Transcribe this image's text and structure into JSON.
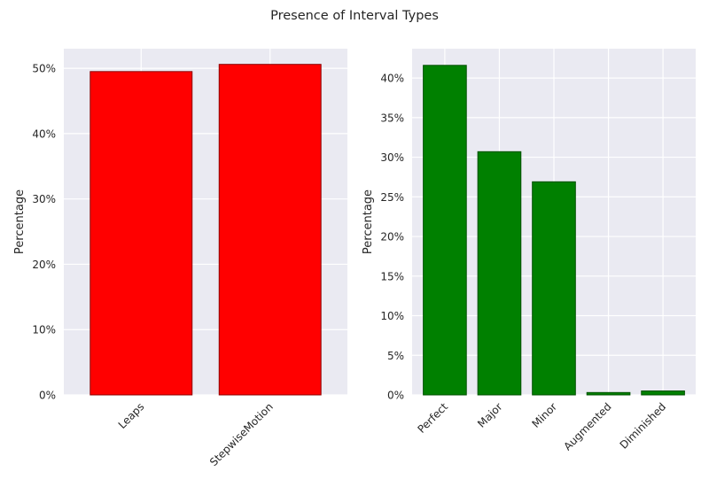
{
  "figure": {
    "title": "Presence of Interval Types",
    "background": "#ffffff",
    "plot_background": "#eaeaf2",
    "grid_color": "#ffffff"
  },
  "chart_data": [
    {
      "type": "bar",
      "categories": [
        "Leaps",
        "StepwiseMotion"
      ],
      "values": [
        49.5,
        50.6
      ],
      "ylabel": "Percentage",
      "xlabel": "",
      "ylim": [
        0,
        53
      ],
      "yticks": [
        0,
        10,
        20,
        30,
        40,
        50
      ],
      "ytick_suffix": "%",
      "bar_color": "#ff0000",
      "edge_color": "#8b0000",
      "grid": true
    },
    {
      "type": "bar",
      "categories": [
        "Perfect",
        "Major",
        "Minor",
        "Augmented",
        "Diminished"
      ],
      "values": [
        41.6,
        30.7,
        26.9,
        0.3,
        0.5
      ],
      "ylabel": "Percentage",
      "xlabel": "",
      "ylim": [
        0,
        43.7
      ],
      "yticks": [
        0,
        5,
        10,
        15,
        20,
        25,
        30,
        35,
        40
      ],
      "ytick_suffix": "%",
      "bar_color": "#008000",
      "edge_color": "#005000",
      "grid": true
    }
  ]
}
